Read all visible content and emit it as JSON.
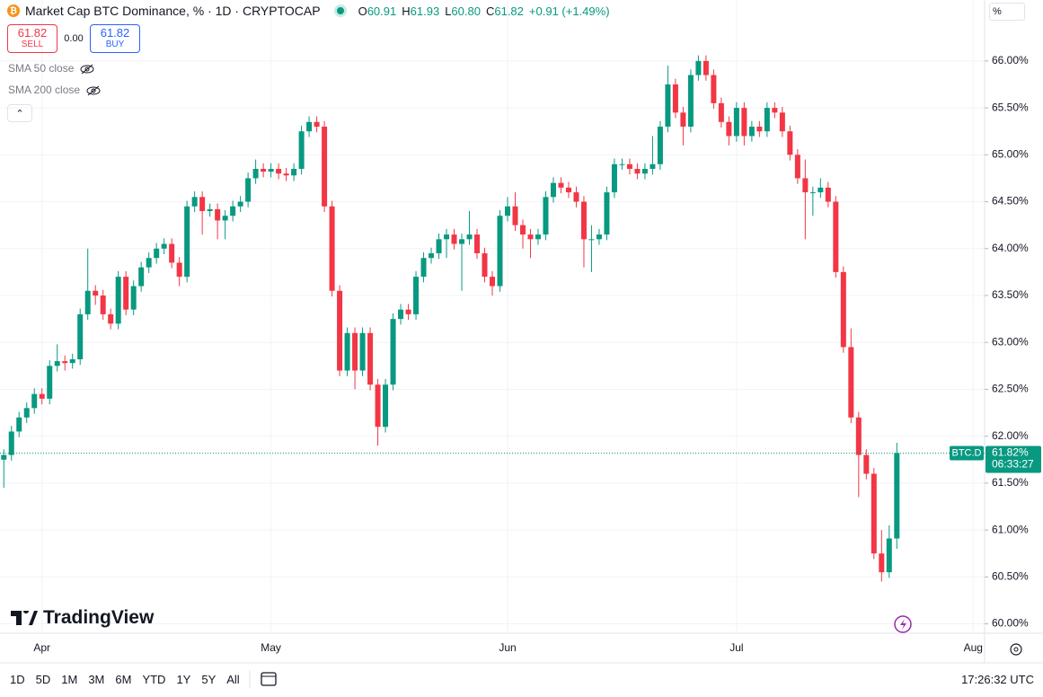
{
  "header": {
    "title": "Market Cap BTC Dominance, % · 1D · CRYPTOCAP",
    "ohlc_legend": [
      {
        "label": "O",
        "value": "60.91"
      },
      {
        "label": "H",
        "value": "61.93"
      },
      {
        "label": "L",
        "value": "60.80"
      },
      {
        "label": "C",
        "value": "61.82"
      }
    ],
    "change": "+0.91 (+1.49%)"
  },
  "trade": {
    "sell_price": "61.82",
    "sell": "SELL",
    "spread": "0.00",
    "buy_price": "61.82",
    "buy": "BUY"
  },
  "indicators": [
    "SMA 50 close",
    "SMA 200 close"
  ],
  "logo": "TradingView",
  "axis_unit": "%",
  "price_label": {
    "symbol": "BTC.D",
    "value": "61.82%",
    "countdown": "06:33:27"
  },
  "timeframes": [
    "1D",
    "5D",
    "1M",
    "3M",
    "6M",
    "YTD",
    "1Y",
    "5Y",
    "All"
  ],
  "clock": "17:26:32 UTC",
  "chart_data": {
    "type": "candlestick",
    "up_color": "#089981",
    "down_color": "#f23645",
    "grid": true,
    "categories": [
      null,
      null,
      null,
      null,
      null,
      "Apr",
      null,
      null,
      null,
      null,
      null,
      null,
      null,
      null,
      null,
      null,
      null,
      null,
      null,
      null,
      null,
      null,
      null,
      null,
      null,
      null,
      null,
      null,
      null,
      null,
      null,
      null,
      null,
      null,
      null,
      "May",
      null,
      null,
      null,
      null,
      null,
      null,
      null,
      null,
      null,
      null,
      null,
      null,
      null,
      null,
      null,
      null,
      null,
      null,
      null,
      null,
      null,
      null,
      null,
      null,
      null,
      null,
      null,
      null,
      null,
      null,
      "Jun",
      null,
      null,
      null,
      null,
      null,
      null,
      null,
      null,
      null,
      null,
      null,
      null,
      null,
      null,
      null,
      null,
      null,
      null,
      null,
      null,
      null,
      null,
      null,
      null,
      null,
      null,
      null,
      null,
      null,
      "Jul",
      null,
      null,
      null,
      null,
      null,
      null,
      null,
      null,
      null,
      null,
      null,
      null,
      null,
      null,
      null,
      null,
      null,
      null,
      null,
      null,
      null,
      null,
      null,
      null,
      null,
      null,
      null,
      null,
      null,
      null,
      "Aug",
      null
    ],
    "open": [
      61.75,
      61.8,
      62.05,
      62.2,
      62.3,
      62.45,
      62.4,
      62.75,
      62.8,
      62.78,
      62.82,
      63.3,
      63.55,
      63.5,
      63.3,
      63.2,
      63.7,
      63.35,
      63.6,
      63.8,
      63.9,
      64.0,
      64.05,
      63.85,
      63.7,
      64.45,
      64.55,
      64.4,
      64.42,
      64.3,
      64.35,
      64.45,
      64.5,
      64.75,
      64.85,
      64.82,
      64.85,
      64.8,
      64.78,
      64.85,
      65.25,
      65.35,
      65.3,
      64.45,
      63.55,
      62.7,
      63.1,
      62.7,
      63.1,
      62.55,
      62.1,
      62.55,
      63.25,
      63.35,
      63.3,
      63.7,
      63.9,
      63.95,
      64.1,
      64.15,
      64.05,
      64.1,
      64.15,
      63.95,
      63.7,
      63.6,
      64.35,
      64.45,
      64.25,
      64.15,
      64.1,
      64.15,
      64.55,
      64.7,
      64.65,
      64.6,
      64.5,
      64.1,
      64.1,
      64.15,
      64.6,
      64.9,
      64.9,
      64.85,
      64.8,
      64.85,
      64.9,
      65.3,
      65.75,
      65.45,
      65.3,
      65.85,
      66.0,
      65.85,
      65.55,
      65.35,
      65.2,
      65.5,
      65.2,
      65.3,
      65.25,
      65.5,
      65.45,
      65.25,
      65.0,
      64.75,
      64.6,
      64.6,
      64.65,
      64.5,
      63.75,
      62.95,
      62.2,
      61.8,
      61.6,
      60.75,
      60.55,
      60.91,
      null,
      null,
      null,
      null,
      null,
      null,
      null,
      null,
      null,
      null,
      null
    ],
    "high": [
      61.86,
      62.11,
      62.26,
      62.36,
      62.51,
      62.51,
      62.81,
      62.98,
      62.86,
      62.88,
      63.36,
      64.0,
      63.61,
      63.56,
      63.36,
      63.76,
      63.76,
      63.66,
      63.86,
      63.96,
      64.06,
      64.11,
      64.11,
      63.91,
      64.51,
      64.61,
      64.61,
      64.48,
      64.48,
      64.41,
      64.51,
      64.56,
      64.81,
      64.95,
      64.91,
      64.91,
      64.91,
      64.86,
      64.91,
      65.31,
      65.41,
      65.41,
      65.36,
      64.51,
      63.61,
      63.16,
      63.16,
      63.16,
      63.16,
      62.61,
      62.61,
      63.31,
      63.41,
      63.41,
      63.76,
      63.96,
      64.01,
      64.16,
      64.21,
      64.21,
      64.16,
      64.4,
      64.21,
      64.01,
      63.76,
      64.41,
      64.55,
      64.6,
      64.31,
      64.21,
      64.21,
      64.61,
      64.76,
      64.76,
      64.71,
      64.66,
      64.56,
      64.25,
      64.21,
      64.66,
      64.96,
      64.96,
      64.96,
      64.91,
      64.91,
      65.2,
      65.36,
      65.95,
      65.81,
      65.51,
      65.91,
      66.06,
      66.06,
      65.91,
      65.61,
      65.41,
      65.56,
      65.56,
      65.36,
      65.36,
      65.56,
      65.56,
      65.51,
      65.31,
      65.06,
      64.95,
      64.66,
      64.75,
      64.71,
      64.56,
      63.81,
      63.15,
      62.26,
      61.86,
      61.66,
      61.0,
      61.05,
      61.93,
      null,
      null,
      null,
      null,
      null,
      null,
      null,
      null,
      null,
      null,
      null
    ],
    "low": [
      61.45,
      61.74,
      61.99,
      62.14,
      62.24,
      62.34,
      62.34,
      62.69,
      62.7,
      62.72,
      62.76,
      63.24,
      63.4,
      63.24,
      63.14,
      63.14,
      63.29,
      63.29,
      63.54,
      63.74,
      63.84,
      63.94,
      63.79,
      63.6,
      63.64,
      64.39,
      64.15,
      64.34,
      64.1,
      64.1,
      64.29,
      64.39,
      64.44,
      64.69,
      64.76,
      64.76,
      64.74,
      64.72,
      64.72,
      64.79,
      65.19,
      65.24,
      64.39,
      63.49,
      62.64,
      62.64,
      62.5,
      62.64,
      62.49,
      61.9,
      62.04,
      62.49,
      63.19,
      63.24,
      63.24,
      63.64,
      63.84,
      63.89,
      63.9,
      63.99,
      63.55,
      64.04,
      63.89,
      63.64,
      63.5,
      63.54,
      64.29,
      64.19,
      64.0,
      63.9,
      64.04,
      64.09,
      64.49,
      64.59,
      64.54,
      64.44,
      63.8,
      63.75,
      64.04,
      64.09,
      64.54,
      64.84,
      64.79,
      64.74,
      64.74,
      64.79,
      64.84,
      65.24,
      65.39,
      65.1,
      65.24,
      65.79,
      65.79,
      65.49,
      65.29,
      65.1,
      65.14,
      65.1,
      65.14,
      65.19,
      65.19,
      65.39,
      65.19,
      64.94,
      64.69,
      64.1,
      64.35,
      64.54,
      64.44,
      63.69,
      62.89,
      62.14,
      61.35,
      61.54,
      60.69,
      60.45,
      60.49,
      60.8,
      null,
      null,
      null,
      null,
      null,
      null,
      null,
      null,
      null,
      null,
      null
    ],
    "close": [
      61.8,
      62.05,
      62.2,
      62.3,
      62.45,
      62.4,
      62.75,
      62.8,
      62.78,
      62.82,
      63.3,
      63.55,
      63.5,
      63.3,
      63.2,
      63.7,
      63.35,
      63.6,
      63.8,
      63.9,
      64.0,
      64.05,
      63.85,
      63.7,
      64.45,
      64.55,
      64.4,
      64.42,
      64.3,
      64.35,
      64.45,
      64.5,
      64.75,
      64.85,
      64.82,
      64.85,
      64.8,
      64.78,
      64.85,
      65.25,
      65.35,
      65.3,
      64.45,
      63.55,
      62.7,
      63.1,
      62.7,
      63.1,
      62.55,
      62.1,
      62.55,
      63.25,
      63.35,
      63.3,
      63.7,
      63.9,
      63.95,
      64.1,
      64.15,
      64.05,
      64.1,
      64.15,
      63.95,
      63.7,
      63.6,
      64.35,
      64.45,
      64.25,
      64.15,
      64.1,
      64.15,
      64.55,
      64.7,
      64.65,
      64.6,
      64.5,
      64.1,
      64.1,
      64.15,
      64.6,
      64.9,
      64.9,
      64.85,
      64.8,
      64.85,
      64.9,
      65.3,
      65.75,
      65.45,
      65.3,
      65.85,
      66.0,
      65.85,
      65.55,
      65.35,
      65.2,
      65.5,
      65.2,
      65.3,
      65.25,
      65.5,
      65.45,
      65.25,
      65.0,
      64.75,
      64.6,
      64.6,
      64.65,
      64.5,
      63.75,
      62.95,
      62.2,
      61.8,
      61.6,
      60.75,
      60.55,
      60.91,
      61.82,
      null,
      null,
      null,
      null,
      null,
      null,
      null,
      null,
      null,
      null,
      null
    ],
    "ylim": [
      59.9,
      66.65
    ],
    "yticks": [
      {
        "value": 60,
        "label": "60.00%"
      },
      {
        "value": 60.5,
        "label": "60.50%"
      },
      {
        "value": 61,
        "label": "61.00%"
      },
      {
        "value": 61.5,
        "label": "61.50%"
      },
      {
        "value": 62,
        "label": "62.00%"
      },
      {
        "value": 62.5,
        "label": "62.50%"
      },
      {
        "value": 63,
        "label": "63.00%"
      },
      {
        "value": 63.5,
        "label": "63.50%"
      },
      {
        "value": 64,
        "label": "64.00%"
      },
      {
        "value": 64.5,
        "label": "64.50%"
      },
      {
        "value": 65,
        "label": "65.00%"
      },
      {
        "value": 65.5,
        "label": "65.50%"
      },
      {
        "value": 66,
        "label": "66.00%"
      }
    ]
  }
}
